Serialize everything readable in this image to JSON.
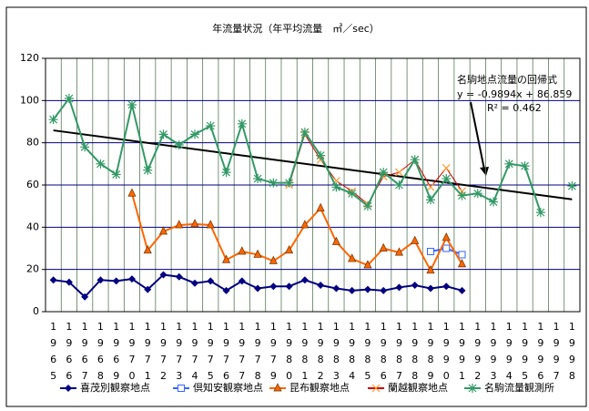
{
  "chart_data": {
    "type": "line",
    "title": "年流量状況（年平均流量　㎥／sec）",
    "categories": [
      "1965",
      "1966",
      "1967",
      "1968",
      "1969",
      "1970",
      "1971",
      "1972",
      "1973",
      "1974",
      "1975",
      "1976",
      "1977",
      "1978",
      "1979",
      "1980",
      "1981",
      "1982",
      "1983",
      "1984",
      "1985",
      "1986",
      "1987",
      "1988",
      "1989",
      "1990",
      "1991",
      "1992",
      "1993",
      "1994",
      "1995",
      "1996",
      "1997",
      "1998"
    ],
    "ylim": [
      0,
      120
    ],
    "yticks": [
      0,
      20,
      40,
      60,
      80,
      100,
      120
    ],
    "grid": true,
    "legend": "bottom",
    "series": [
      {
        "name": "喜茂別観察地点",
        "color": "#000080",
        "marker": "diamond",
        "values": [
          15,
          14,
          7,
          15,
          14.5,
          15.5,
          10.5,
          17.5,
          16.5,
          13.5,
          14.5,
          10,
          14.5,
          11,
          12,
          12,
          15,
          12.5,
          11,
          10,
          10.5,
          10,
          11.5,
          12.5,
          11,
          12,
          10,
          null,
          null,
          null,
          null,
          null,
          null,
          null
        ]
      },
      {
        "name": "倶知安観察地点",
        "color": "#3366ff",
        "marker": "square",
        "values": [
          null,
          null,
          null,
          null,
          null,
          null,
          null,
          null,
          null,
          null,
          null,
          null,
          null,
          null,
          null,
          null,
          null,
          null,
          null,
          null,
          null,
          null,
          null,
          null,
          28.5,
          30,
          27,
          null,
          null,
          null,
          null,
          null,
          null,
          null
        ]
      },
      {
        "name": "昆布観察地点",
        "color": "#ff6600",
        "marker": "triangle",
        "values": [
          null,
          null,
          null,
          null,
          null,
          56,
          29,
          38,
          41,
          41.5,
          41,
          24.5,
          28.5,
          27,
          24,
          29,
          41,
          49,
          33,
          25,
          22,
          30,
          28,
          33.5,
          19.5,
          35,
          22.5,
          null,
          null,
          null,
          null,
          null,
          null,
          null
        ]
      },
      {
        "name": "蘭越観察地点",
        "color": "#cc0000",
        "marker": "x",
        "values": [
          null,
          null,
          null,
          null,
          null,
          null,
          null,
          null,
          null,
          null,
          null,
          null,
          null,
          null,
          null,
          60,
          84,
          72,
          62,
          57,
          51,
          64,
          66,
          72,
          59,
          68,
          57,
          null,
          null,
          null,
          null,
          null,
          null,
          null
        ]
      },
      {
        "name": "名駒流量観測所",
        "color": "#339966",
        "marker": "asterisk",
        "values": [
          91,
          101,
          78,
          70,
          65,
          98,
          67,
          84,
          79,
          84,
          88,
          66,
          89,
          63,
          61,
          61,
          85,
          74,
          59,
          56,
          50,
          66,
          60,
          72,
          53,
          63,
          55,
          56,
          52,
          70,
          69,
          47,
          null,
          59.5
        ]
      }
    ],
    "trendline": {
      "slope": -0.9894,
      "intercept": 86.859
    },
    "annotations": [
      "名駒地点流量の回帰式",
      "y = -0.9894x + 86.859",
      "R² = 0.462"
    ]
  }
}
